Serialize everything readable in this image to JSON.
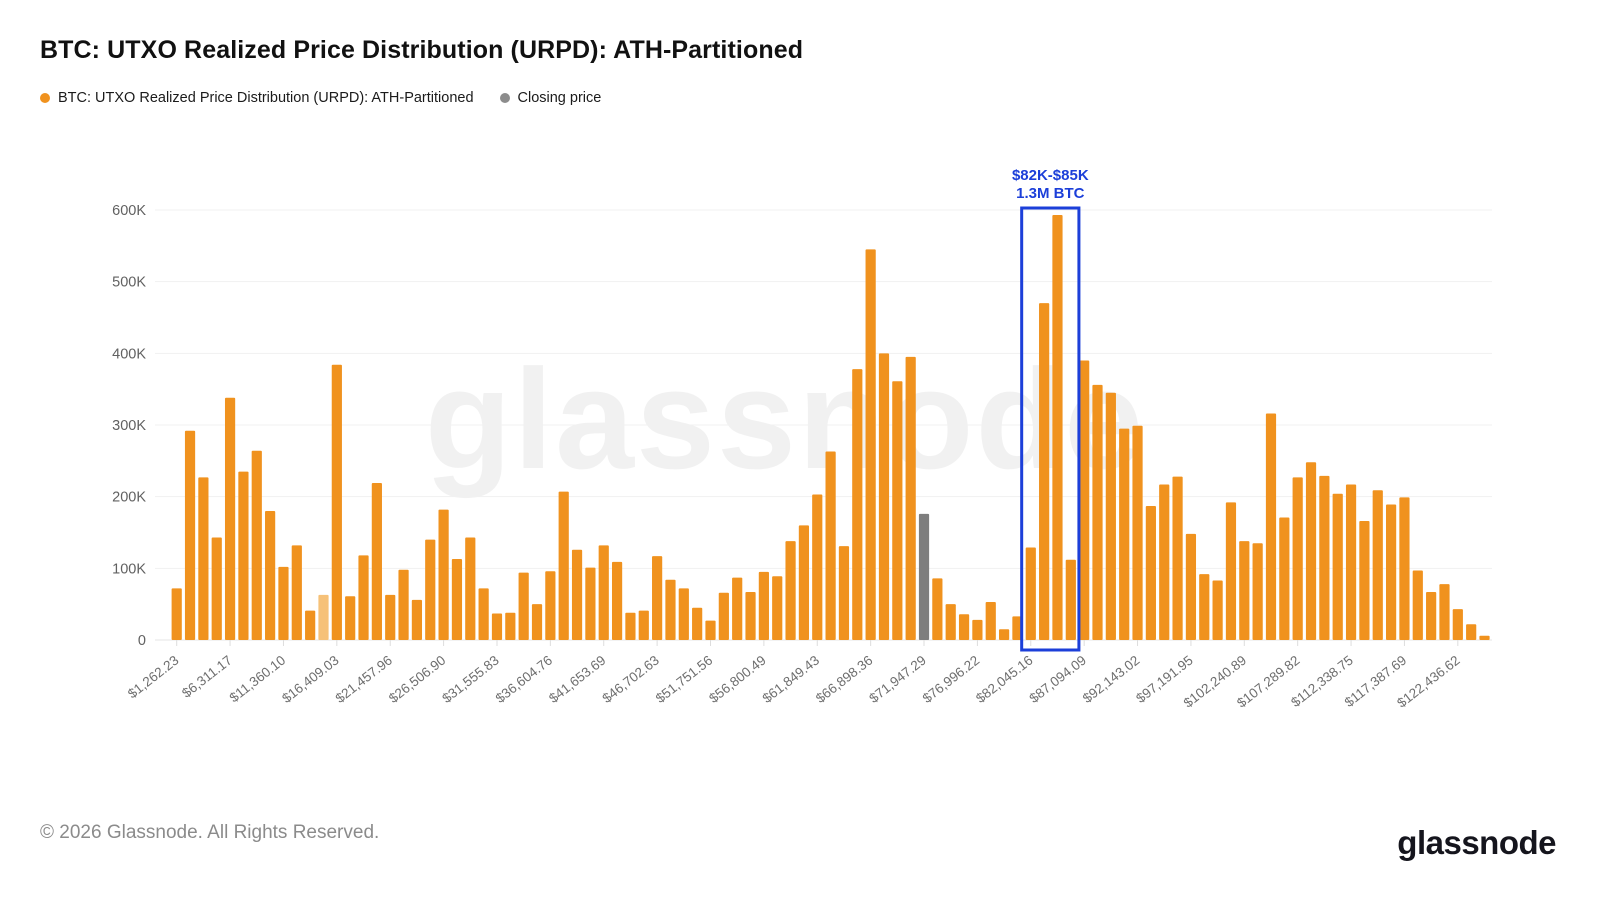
{
  "page": {
    "title": "BTC: UTXO Realized Price Distribution (URPD): ATH-Partitioned",
    "footer_copyright": "© 2026 Glassnode. All Rights Reserved.",
    "brand_logo": "glassnode",
    "watermark": "glassnode"
  },
  "legend": {
    "items": [
      {
        "label": "BTC: UTXO Realized Price Distribution (URPD): ATH-Partitioned",
        "color": "#F0921E"
      },
      {
        "label": "Closing price",
        "color": "#8C8C8C"
      }
    ]
  },
  "colors": {
    "bar_orange": "#F0921E",
    "bar_orange_faded": "#F6C178",
    "bar_closing_gray": "#7E7E7E",
    "annotation_blue": "#1C3FD9",
    "grid_line": "#F1F1F1",
    "baseline": "#E6E6E6",
    "tick_mark": "#DDDDDD",
    "y_axis_text": "#616161",
    "x_axis_text": "#6E6E6E",
    "watermark_text": "#EDEDED"
  },
  "chart_data": {
    "type": "bar",
    "title": "BTC: UTXO Realized Price Distribution (URPD): ATH-Partitioned",
    "xlabel": "",
    "ylabel": "",
    "ylim": [
      0,
      600000
    ],
    "grid": "horizontal",
    "legend_position": "top-left",
    "y_tick_labels": [
      "0",
      "100K",
      "200K",
      "300K",
      "400K",
      "500K",
      "600K"
    ],
    "x_bin_start_usd": 1262.23,
    "x_bin_step_usd": 1262.23,
    "x_tick_every_n_bars": 4,
    "x_tick_labels": [
      "$1,262.23",
      "$6,311.17",
      "$11,360.10",
      "$16,409.03",
      "$21,457.96",
      "$26,506.90",
      "$31,555.83",
      "$36,604.76",
      "$41,653.69",
      "$46,702.63",
      "$51,751.56",
      "$56,800.49",
      "$61,849.43",
      "$66,898.36",
      "$71,947.29",
      "$76,996.22",
      "$82,045.16",
      "$87,094.09",
      "$92,143.02",
      "$97,191.95",
      "$102,240.89",
      "$107,289.82",
      "$112,338.75",
      "$117,387.69",
      "$122,436.62"
    ],
    "series": [
      {
        "name": "BTC: UTXO Realized Price Distribution (URPD): ATH-Partitioned",
        "color": "#F0921E",
        "values_btc": [
          72000,
          292000,
          227000,
          143000,
          338000,
          235000,
          264000,
          180000,
          102000,
          132000,
          41000,
          63000,
          384000,
          61000,
          118000,
          219000,
          63000,
          98000,
          56000,
          140000,
          182000,
          113000,
          143000,
          72000,
          37000,
          38000,
          94000,
          50000,
          96000,
          207000,
          126000,
          101000,
          132000,
          109000,
          38000,
          41000,
          117000,
          84000,
          72000,
          45000,
          27000,
          66000,
          87000,
          67000,
          95000,
          89000,
          138000,
          160000,
          203000,
          263000,
          131000,
          378000,
          545000,
          400000,
          361000,
          395000,
          176000,
          86000,
          50000,
          36000,
          28000,
          53000,
          15000,
          33000,
          129000,
          470000,
          593000,
          112000,
          390000,
          356000,
          345000,
          295000,
          299000,
          187000,
          217000,
          228000,
          148000,
          92000,
          83000,
          192000,
          138000,
          135000,
          316000,
          171000,
          227000,
          248000,
          229000,
          204000,
          217000,
          166000,
          209000,
          189000,
          199000,
          97000,
          67000,
          78000,
          43000,
          22000,
          6000
        ]
      }
    ],
    "closing_price_bar": {
      "index_1based": 57,
      "price_label": "$71,947.29",
      "value_btc": 176000,
      "color": "#7E7E7E"
    },
    "faded_bar_index_1based": 12,
    "annotation": {
      "line1": "$82K-$85K",
      "line2": "1.3M BTC",
      "box_start_bar": 65,
      "box_end_bar": 68,
      "color": "#1C3FD9"
    }
  }
}
